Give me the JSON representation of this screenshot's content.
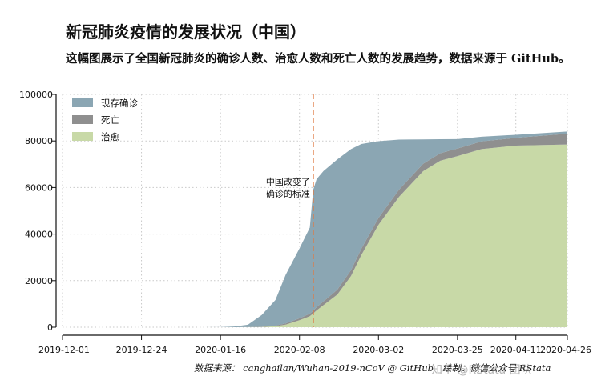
{
  "title": "新冠肺炎疫情的发展状况（中国）",
  "subtitle": "这幅图展示了全国新冠肺炎的确诊人数、治愈人数和死亡人数的发展趋势，数据来源于 GitHub。",
  "source_note": "数据来源： canghailan/Wuhan-2019-nCoV @ GitHub | 绘制：微信公众号 RStata",
  "watermark": "知乎 @RStata 团队",
  "chart_data": {
    "type": "area",
    "title": "新冠肺炎疫情的发展状况（中国）",
    "xlabel": "",
    "ylabel": "",
    "x_ticks": [
      "2019-12-01",
      "2019-12-24",
      "2020-01-16",
      "2020-02-08",
      "2020-03-02",
      "2020-03-25",
      "2020-04-11",
      "2020-04-26"
    ],
    "y_ticks": [
      "0",
      "20000",
      "40000",
      "60000",
      "80000",
      "100000"
    ],
    "ylim": [
      0,
      100000
    ],
    "xlim": [
      "2019-12-01",
      "2020-04-26"
    ],
    "grid": true,
    "legend_position": "top-left",
    "stacked": true,
    "stack_order": [
      "治愈",
      "死亡",
      "现存确诊"
    ],
    "colors": {
      "现存确诊": "#8ba6b3",
      "死亡": "#8f8f8f",
      "治愈": "#c8d9a7",
      "annotation_line": "#e07a45"
    },
    "x": [
      "2019-12-01",
      "2020-01-10",
      "2020-01-16",
      "2020-01-20",
      "2020-01-24",
      "2020-01-28",
      "2020-02-01",
      "2020-02-04",
      "2020-02-08",
      "2020-02-11",
      "2020-02-12",
      "2020-02-13",
      "2020-02-15",
      "2020-02-19",
      "2020-02-23",
      "2020-02-26",
      "2020-03-02",
      "2020-03-08",
      "2020-03-15",
      "2020-03-20",
      "2020-03-25",
      "2020-04-01",
      "2020-04-11",
      "2020-04-26"
    ],
    "series": [
      {
        "name": "治愈",
        "values": [
          0,
          0,
          0,
          0,
          20,
          90,
          400,
          1100,
          3000,
          4700,
          5900,
          7200,
          9500,
          14000,
          22000,
          31000,
          44000,
          56000,
          67000,
          71500,
          73500,
          76500,
          78000,
          78500
        ]
      },
      {
        "name": "死亡",
        "values": [
          0,
          0,
          0,
          10,
          40,
          130,
          300,
          500,
          800,
          1100,
          1200,
          1400,
          1600,
          2100,
          2500,
          2700,
          2900,
          3100,
          3200,
          3250,
          3280,
          3310,
          3340,
          4640
        ]
      },
      {
        "name": "现存确诊",
        "values": [
          0,
          0,
          50,
          300,
          1000,
          5000,
          11000,
          21000,
          30000,
          37000,
          52000,
          55000,
          56000,
          56000,
          52000,
          45000,
          33000,
          21500,
          10500,
          6000,
          4000,
          2000,
          1300,
          900
        ]
      }
    ],
    "annotations": [
      {
        "x": "2020-02-12",
        "text_lines": [
          "中国改变了",
          "确诊的标准"
        ]
      }
    ]
  }
}
